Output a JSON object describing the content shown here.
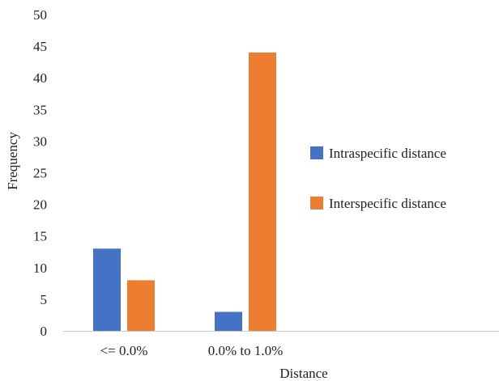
{
  "chart_data": {
    "type": "bar",
    "xlabel": "Distance",
    "ylabel": "Frequency",
    "categories": [
      "<= 0.0%",
      "0.0% to 1.0%"
    ],
    "ylim": [
      0,
      50
    ],
    "yticks": [
      "0",
      "5",
      "10",
      "15",
      "20",
      "25",
      "30",
      "35",
      "40",
      "45",
      "50"
    ],
    "grid": false,
    "legend_position": "right",
    "series": [
      {
        "name": "Intraspecific distance",
        "color": "#4472c4",
        "values": [
          13,
          3
        ]
      },
      {
        "name": "Interspecific distance",
        "color": "#ed7d31",
        "values": [
          8,
          44
        ]
      }
    ]
  }
}
